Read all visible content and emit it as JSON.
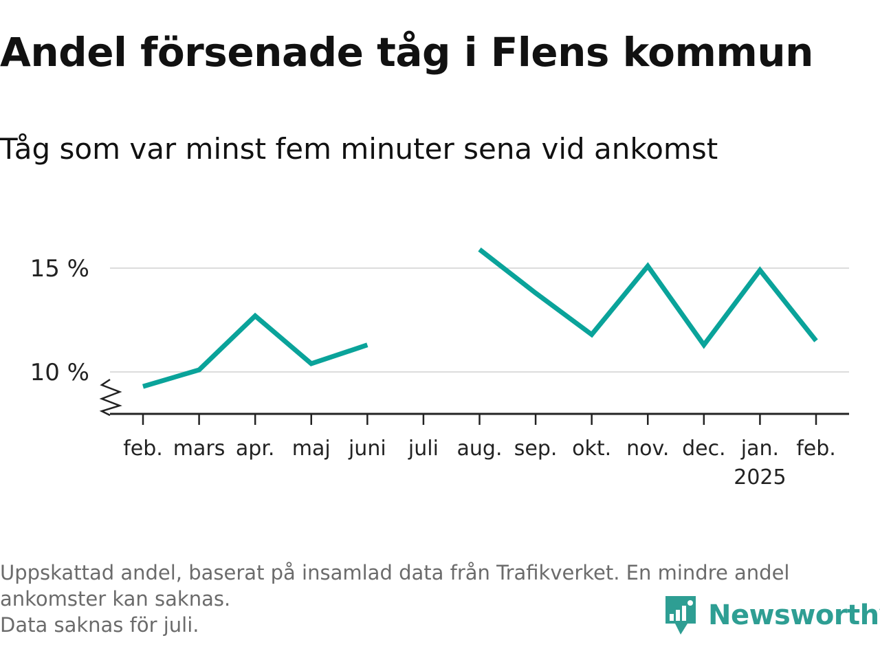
{
  "title": "Andel försenade tåg i Flens kommun",
  "subtitle": "Tåg som var minst fem minuter sena vid ankomst",
  "footnote": {
    "line1": "Uppskattad andel, baserat på insamlad data från Trafikverket. En mindre andel",
    "line2": "ankomster kan saknas.",
    "line3": "Data saknas för juli."
  },
  "brand": {
    "name": "Newsworthy",
    "icon": "newsworthy-logo-icon",
    "color": "#2e9e93"
  },
  "chart_data": {
    "type": "line",
    "title": "Andel försenade tåg i Flens kommun",
    "subtitle": "Tåg som var minst fem minuter sena vid ankomst",
    "categories": [
      "feb.",
      "mars",
      "apr.",
      "maj",
      "juni",
      "juli",
      "aug.",
      "sep.",
      "okt.",
      "nov.",
      "dec.",
      "jan.",
      "feb."
    ],
    "year_label": "2025",
    "year_label_index": 11,
    "series": [
      {
        "values": [
          9.3,
          10.1,
          12.7,
          10.4,
          11.3,
          null,
          15.9,
          13.8,
          11.8,
          15.1,
          11.3,
          14.9,
          11.5
        ],
        "color": "#0aa39a"
      }
    ],
    "y_ticks": [
      {
        "value": 10,
        "label": "10 %"
      },
      {
        "value": 15,
        "label": "15 %"
      }
    ],
    "ylim": [
      8,
      16.5
    ],
    "axis_break": true,
    "grid": true,
    "legend": "none"
  }
}
